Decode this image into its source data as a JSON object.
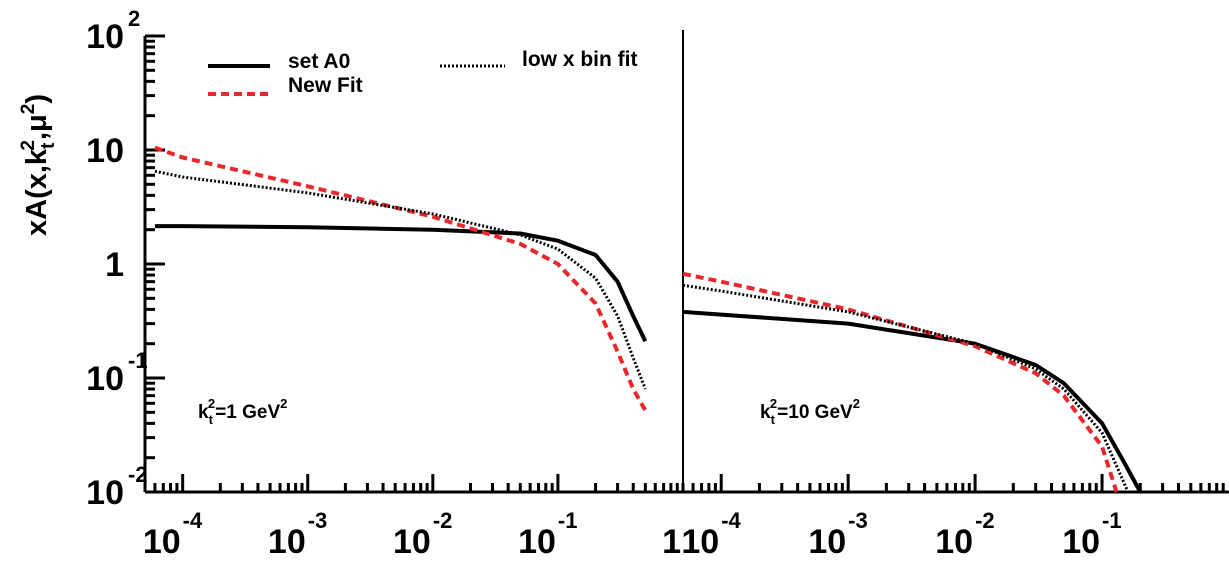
{
  "chart_data": {
    "type": "line",
    "yscale": "log",
    "xscale": "log",
    "ylim": [
      0.01,
      100
    ],
    "ylabel": {
      "main": "xA(x,k",
      "sub": "t",
      "sup": "2",
      "rest": ",μ",
      "sup2": "2",
      "close": ")"
    },
    "yticks": [
      {
        "value": 100,
        "base": "10",
        "exp": "2"
      },
      {
        "value": 10,
        "base": "10",
        "exp": ""
      },
      {
        "value": 1,
        "base": "1",
        "exp": ""
      },
      {
        "value": 0.1,
        "base": "10",
        "exp": "-1"
      },
      {
        "value": 0.01,
        "base": "10",
        "exp": "-2"
      }
    ],
    "legend": {
      "placement": "top",
      "entries": [
        {
          "label": "set A0",
          "style": "solid",
          "color": "#000000"
        },
        {
          "label": "New Fit",
          "style": "dashed",
          "color": "#e8282c"
        },
        {
          "label": "low x bin fit",
          "style": "dotted",
          "color": "#000000"
        }
      ]
    },
    "panels": [
      {
        "annotation": {
          "k": "k",
          "sub": "t",
          "sup": "2",
          "text": "=1 GeV",
          "unit_sup": "2"
        },
        "xlim": [
          5e-05,
          1
        ],
        "xticks": [
          {
            "value": 0.0001,
            "base": "10",
            "exp": "-4"
          },
          {
            "value": 0.001,
            "base": "10",
            "exp": "-3"
          },
          {
            "value": 0.01,
            "base": "10",
            "exp": "-2"
          },
          {
            "value": 0.1,
            "base": "10",
            "exp": "-1"
          },
          {
            "value": 1,
            "base": "1",
            "exp": ""
          }
        ],
        "series": [
          {
            "name": "set A0",
            "x": [
              6e-05,
              0.0001,
              0.001,
              0.01,
              0.05,
              0.1,
              0.2,
              0.3,
              0.4,
              0.5
            ],
            "y": [
              2.15,
              2.15,
              2.1,
              2.0,
              1.85,
              1.6,
              1.2,
              0.7,
              0.35,
              0.21
            ]
          },
          {
            "name": "New Fit",
            "x": [
              6e-05,
              0.0001,
              0.001,
              0.01,
              0.05,
              0.1,
              0.2,
              0.3,
              0.4,
              0.5
            ],
            "y": [
              10.5,
              8.6,
              4.8,
              2.6,
              1.5,
              1.0,
              0.45,
              0.17,
              0.08,
              0.052
            ]
          },
          {
            "name": "low x bin fit",
            "x": [
              6e-05,
              0.0001,
              0.001,
              0.01,
              0.05,
              0.1,
              0.2,
              0.3,
              0.4,
              0.5
            ],
            "y": [
              6.5,
              5.8,
              4.2,
              2.75,
              1.8,
              1.35,
              0.75,
              0.35,
              0.15,
              0.08
            ]
          }
        ]
      },
      {
        "annotation": {
          "k": "k",
          "sub": "t",
          "sup": "2",
          "text": "=10 GeV",
          "unit_sup": "2"
        },
        "xlim": [
          5e-05,
          1
        ],
        "xticks": [
          {
            "value": 0.0001,
            "base": "10",
            "exp": "-4"
          },
          {
            "value": 0.001,
            "base": "10",
            "exp": "-3"
          },
          {
            "value": 0.01,
            "base": "10",
            "exp": "-2"
          },
          {
            "value": 0.1,
            "base": "10",
            "exp": "-1"
          }
        ],
        "series": [
          {
            "name": "set A0",
            "x": [
              5e-05,
              0.0001,
              0.001,
              0.01,
              0.03,
              0.05,
              0.1,
              0.15,
              0.2
            ],
            "y": [
              0.38,
              0.36,
              0.3,
              0.2,
              0.13,
              0.09,
              0.04,
              0.018,
              0.01
            ]
          },
          {
            "name": "New Fit",
            "x": [
              5e-05,
              0.0001,
              0.001,
              0.01,
              0.03,
              0.05,
              0.1,
              0.13
            ],
            "y": [
              0.82,
              0.7,
              0.4,
              0.19,
              0.11,
              0.07,
              0.025,
              0.01
            ]
          },
          {
            "name": "low x bin fit",
            "x": [
              5e-05,
              0.0001,
              0.001,
              0.01,
              0.03,
              0.05,
              0.1,
              0.16
            ],
            "y": [
              0.65,
              0.58,
              0.38,
              0.2,
              0.12,
              0.08,
              0.033,
              0.01
            ]
          }
        ]
      }
    ]
  }
}
